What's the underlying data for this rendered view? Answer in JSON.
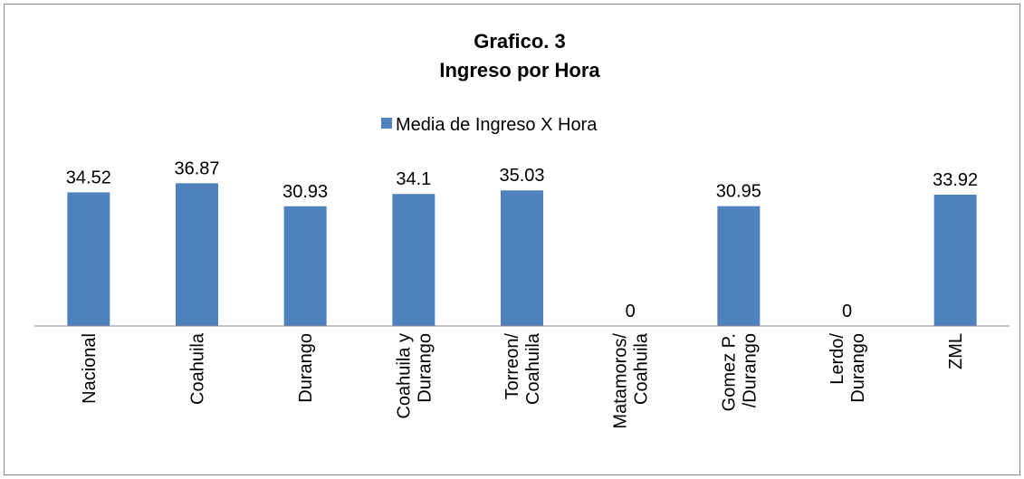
{
  "chart_data": {
    "type": "bar",
    "title": "Grafico. 3",
    "subtitle": "Ingreso por Hora",
    "categories": [
      "Nacional",
      "Coahuila",
      "Durango",
      "Coahuila y\nDurango",
      "Torreon/\nCoahuila",
      "Matamoros/\nCoahuila",
      "Gomez P.\n/Durango",
      "Lerdo/\nDurango",
      "ZML"
    ],
    "series": [
      {
        "name": "Media de Ingreso X Hora",
        "color": "#4f81bd",
        "values": [
          34.52,
          36.87,
          30.93,
          34.1,
          35.03,
          0,
          30.95,
          0,
          33.92
        ]
      }
    ],
    "ylim": [
      0,
      40
    ],
    "legend": "top"
  }
}
